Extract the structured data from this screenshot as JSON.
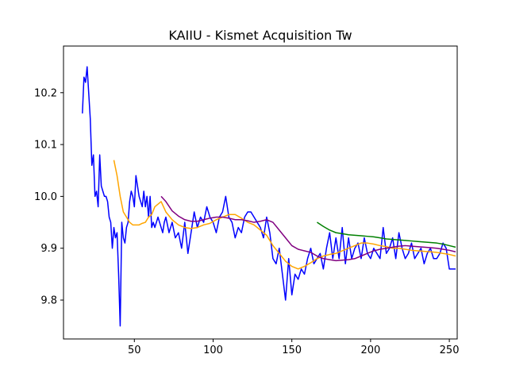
{
  "chart_data": {
    "type": "line",
    "title": "KAIIU - Kismet Acquisition Tw",
    "xlabel": "",
    "ylabel": "",
    "xlim": [
      5,
      255
    ],
    "ylim": [
      9.725,
      10.29
    ],
    "xticks": [
      50,
      100,
      150,
      200,
      250
    ],
    "yticks": [
      9.8,
      9.9,
      10.0,
      10.1,
      10.2
    ],
    "xtick_labels": [
      "50",
      "100",
      "150",
      "200",
      "250"
    ],
    "ytick_labels": [
      "9.8",
      "9.9",
      "10.0",
      "10.1",
      "10.2"
    ],
    "grid": false,
    "series": [
      {
        "color": "#0000ff",
        "x": [
          17,
          18,
          19,
          20,
          21,
          22,
          23,
          24,
          25,
          26,
          27,
          28,
          29,
          30,
          31,
          32,
          33,
          34,
          35,
          36,
          37,
          38,
          39,
          40,
          41,
          42,
          43,
          44,
          45,
          46,
          47,
          48,
          49,
          50,
          51,
          52,
          53,
          54,
          55,
          56,
          57,
          58,
          59,
          60,
          61,
          62,
          63,
          64,
          65,
          66,
          67,
          68,
          69,
          70,
          72,
          74,
          76,
          78,
          80,
          82,
          84,
          86,
          88,
          90,
          92,
          94,
          96,
          98,
          100,
          102,
          104,
          106,
          108,
          110,
          112,
          114,
          116,
          118,
          120,
          122,
          124,
          126,
          128,
          130,
          132,
          134,
          136,
          138,
          140,
          142,
          144,
          146,
          148,
          150,
          152,
          154,
          156,
          158,
          160,
          162,
          164,
          166,
          168,
          170,
          172,
          174,
          176,
          178,
          180,
          182,
          184,
          186,
          188,
          190,
          192,
          194,
          196,
          198,
          200,
          202,
          204,
          206,
          208,
          210,
          212,
          214,
          216,
          218,
          220,
          222,
          224,
          226,
          228,
          230,
          232,
          234,
          236,
          238,
          240,
          242,
          244,
          246,
          248,
          250,
          252,
          254
        ],
        "y": [
          10.16,
          10.23,
          10.22,
          10.25,
          10.2,
          10.15,
          10.06,
          10.08,
          10.0,
          10.01,
          9.98,
          10.08,
          10.02,
          10.01,
          10.0,
          10.0,
          9.99,
          9.96,
          9.95,
          9.9,
          9.94,
          9.92,
          9.93,
          9.85,
          9.75,
          9.95,
          9.92,
          9.91,
          9.94,
          9.95,
          9.99,
          10.01,
          10.0,
          9.98,
          10.04,
          10.02,
          10.0,
          9.99,
          9.98,
          10.01,
          9.98,
          10.0,
          9.96,
          10.0,
          9.94,
          9.95,
          9.94,
          9.95,
          9.96,
          9.95,
          9.94,
          9.93,
          9.95,
          9.96,
          9.93,
          9.95,
          9.92,
          9.93,
          9.9,
          9.95,
          9.89,
          9.93,
          9.97,
          9.94,
          9.96,
          9.95,
          9.98,
          9.96,
          9.95,
          9.93,
          9.96,
          9.97,
          10.0,
          9.96,
          9.95,
          9.92,
          9.94,
          9.93,
          9.96,
          9.97,
          9.97,
          9.96,
          9.95,
          9.94,
          9.92,
          9.96,
          9.93,
          9.88,
          9.87,
          9.9,
          9.85,
          9.8,
          9.88,
          9.81,
          9.85,
          9.84,
          9.86,
          9.85,
          9.88,
          9.9,
          9.87,
          9.88,
          9.89,
          9.86,
          9.9,
          9.93,
          9.88,
          9.92,
          9.88,
          9.94,
          9.87,
          9.92,
          9.88,
          9.9,
          9.91,
          9.88,
          9.92,
          9.89,
          9.88,
          9.9,
          9.89,
          9.88,
          9.94,
          9.89,
          9.9,
          9.92,
          9.88,
          9.93,
          9.9,
          9.88,
          9.89,
          9.91,
          9.88,
          9.89,
          9.9,
          9.87,
          9.89,
          9.9,
          9.88,
          9.88,
          9.89,
          9.91,
          9.9,
          9.86,
          9.86,
          9.86
        ]
      },
      {
        "color": "#ffa500",
        "x": [
          37,
          39,
          41,
          43,
          45,
          47,
          49,
          51,
          53,
          55,
          57,
          59,
          61,
          63,
          65,
          67,
          70,
          74,
          78,
          82,
          86,
          90,
          94,
          98,
          102,
          106,
          110,
          114,
          118,
          122,
          126,
          130,
          134,
          138,
          142,
          146,
          150,
          154,
          158,
          162,
          166,
          170,
          174,
          178,
          182,
          186,
          190,
          194,
          198,
          202,
          206,
          210,
          214,
          218,
          222,
          226,
          230,
          234,
          238,
          242,
          246,
          250,
          254
        ],
        "y": [
          10.07,
          10.04,
          10.0,
          9.97,
          9.96,
          9.95,
          9.945,
          9.945,
          9.945,
          9.948,
          9.95,
          9.96,
          9.965,
          9.98,
          9.985,
          9.99,
          9.97,
          9.955,
          9.945,
          9.94,
          9.938,
          9.94,
          9.945,
          9.948,
          9.955,
          9.96,
          9.965,
          9.965,
          9.958,
          9.95,
          9.945,
          9.935,
          9.925,
          9.905,
          9.89,
          9.875,
          9.865,
          9.86,
          9.865,
          9.872,
          9.88,
          9.885,
          9.888,
          9.89,
          9.895,
          9.9,
          9.905,
          9.91,
          9.91,
          9.908,
          9.905,
          9.903,
          9.9,
          9.9,
          9.898,
          9.896,
          9.895,
          9.894,
          9.893,
          9.892,
          9.89,
          9.888,
          9.885
        ]
      },
      {
        "color": "#800080",
        "x": [
          67,
          70,
          74,
          78,
          82,
          86,
          90,
          94,
          98,
          102,
          106,
          110,
          114,
          118,
          122,
          126,
          130,
          134,
          138,
          142,
          146,
          150,
          154,
          158,
          162,
          166,
          170,
          174,
          178,
          182,
          186,
          190,
          194,
          198,
          202,
          206,
          210,
          214,
          218,
          222,
          226,
          230,
          234,
          238,
          242,
          246,
          250,
          254
        ],
        "y": [
          10.0,
          9.99,
          9.972,
          9.962,
          9.955,
          9.952,
          9.952,
          9.955,
          9.958,
          9.96,
          9.96,
          9.958,
          9.955,
          9.955,
          9.953,
          9.95,
          9.952,
          9.955,
          9.95,
          9.935,
          9.92,
          9.905,
          9.898,
          9.895,
          9.892,
          9.885,
          9.88,
          9.878,
          9.876,
          9.877,
          9.878,
          9.88,
          9.885,
          9.89,
          9.895,
          9.898,
          9.9,
          9.902,
          9.904,
          9.905,
          9.904,
          9.903,
          9.902,
          9.901,
          9.9,
          9.898,
          9.896,
          9.893
        ]
      },
      {
        "color": "#008000",
        "x": [
          166,
          170,
          174,
          178,
          182,
          186,
          190,
          194,
          198,
          202,
          206,
          210,
          214,
          218,
          222,
          226,
          230,
          234,
          238,
          242,
          246,
          250,
          254
        ],
        "y": [
          9.95,
          9.942,
          9.935,
          9.93,
          9.928,
          9.926,
          9.925,
          9.924,
          9.923,
          9.922,
          9.92,
          9.918,
          9.917,
          9.916,
          9.915,
          9.914,
          9.913,
          9.912,
          9.911,
          9.91,
          9.908,
          9.905,
          9.902
        ]
      }
    ]
  }
}
